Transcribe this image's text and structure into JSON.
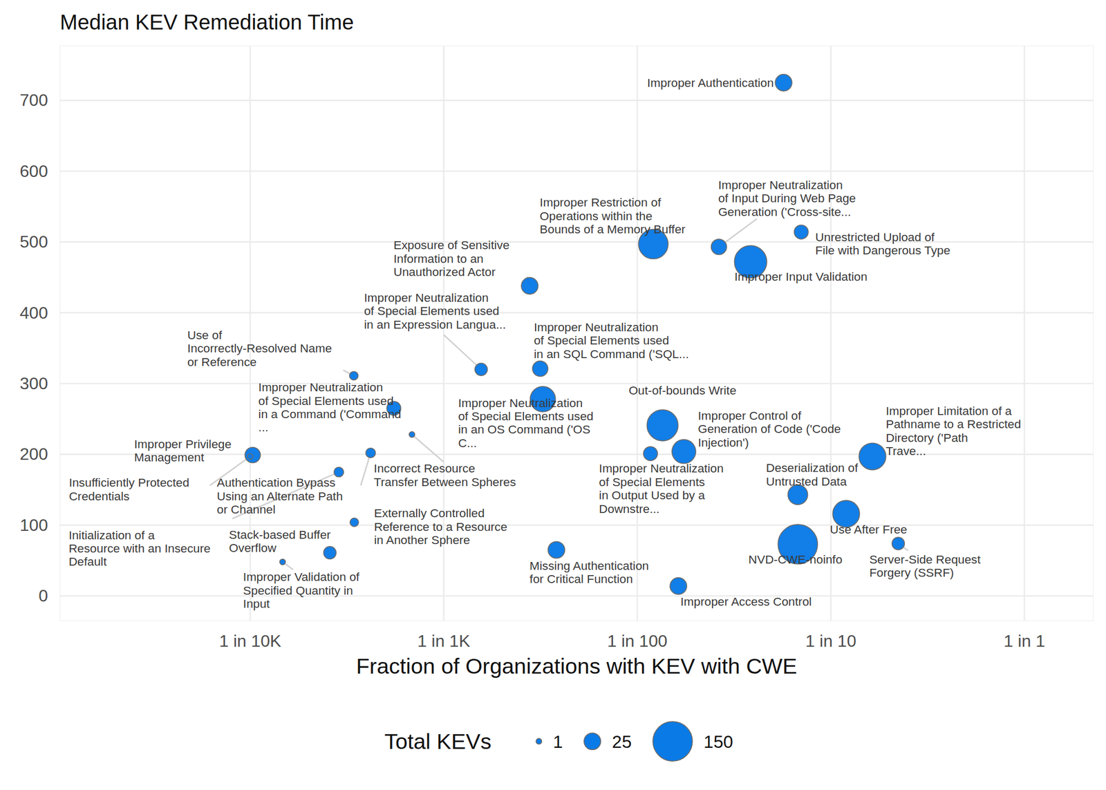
{
  "chart_data": {
    "type": "scatter",
    "title": "Median KEV Remediation Time",
    "x_label": "Fraction of Organizations with KEV with CWE",
    "size_label": "Total KEVs",
    "labels": [
      "Improper Authentication",
      "Improper Restriction of\nOperations within the\nBounds of a Memory Buffer",
      "Improper Neutralization\nof Input During Web Page\nGeneration ('Cross-site...",
      "Improper Input Validation",
      "Unrestricted Upload of\nFile with Dangerous Type",
      "Exposure of Sensitive\nInformation to an\nUnauthorized Actor",
      "Improper Neutralization\nof Special Elements used\nin an Expression Langua...",
      "Improper Neutralization\nof Special Elements used\nin an SQL Command ('SQL...",
      "Improper Neutralization\nof Special Elements used\nin an OS Command ('OS\nC...",
      "Use of\nIncorrectly-Resolved Name\nor Reference",
      "Improper Neutralization\nof Special Elements used\nin a Command ('Command\n...",
      "Incorrect Resource\nTransfer Between Spheres",
      "Improper Privilege\nManagement",
      "Insufficiently Protected\nCredentials",
      "Authentication Bypass\nUsing an Alternate Path\nor Channel",
      "Initialization of a\nResource with an Insecure\nDefault",
      "Stack-based Buffer\nOverflow",
      "Externally Controlled\nReference to a Resource\nin Another Sphere",
      "Improper Validation of\nSpecified Quantity in\nInput",
      "Out-of-bounds Write",
      "Improper Control of\nGeneration of Code ('Code\nInjection')",
      "Improper Neutralization\nof Special Elements\nin Output Used by a\nDownstre...",
      "Deserialization of\nUntrusted Data",
      "Use After Free",
      "Improper Limitation of a\nPathname to a Restricted\nDirectory ('Path\nTrave...",
      "NVD-CWE-noinfo",
      "Server-Side Request\nForgery (SSRF)",
      "Missing Authentication\nfor Critical Function",
      "Improper Access Control"
    ],
    "x": [
      0.057,
      0.0121,
      0.0264,
      0.0385,
      0.0703,
      0.00278,
      0.00156,
      0.00315,
      0.00325,
      0.000343,
      0.000552,
      0.000685,
      0.000103,
      0.0001,
      0.000419,
      0.000287,
      0.000258,
      0.000345,
      0.000147,
      0.0135,
      0.0174,
      0.0117,
      0.0675,
      0.12,
      0.164,
      0.0675,
      0.223,
      0.00382,
      0.0163
    ],
    "y": [
      725,
      497,
      493,
      472,
      514,
      438,
      320,
      321,
      278,
      311,
      265,
      228,
      199,
      197,
      202,
      175,
      61,
      104,
      48,
      241,
      204,
      201,
      143,
      116,
      197,
      73,
      74,
      65,
      14
    ],
    "sizes": [
      25,
      83,
      21,
      100,
      17,
      25,
      13,
      21,
      60,
      5,
      17,
      1,
      21,
      1,
      7,
      7,
      13,
      5,
      1,
      92,
      53,
      17,
      36,
      68,
      68,
      150,
      13,
      25,
      25
    ],
    "size_legend_values": [
      1,
      25,
      150
    ],
    "color": "#0a7ae6",
    "log": "x",
    "grid": true,
    "legend": "bottom",
    "xlim": [
      1.04e-05,
      2.27
    ],
    "ylim": [
      -35,
      777
    ],
    "xticks": [
      {
        "value": 0.0001,
        "label": "1 in 10K"
      },
      {
        "value": 0.001,
        "label": "1 in 1K"
      },
      {
        "value": 0.01,
        "label": "1 in 100"
      },
      {
        "value": 0.1,
        "label": "1 in 10"
      },
      {
        "value": 1,
        "label": "1 in 1"
      }
    ],
    "yticks": [
      0,
      100,
      200,
      300,
      400,
      500,
      600,
      700
    ]
  }
}
